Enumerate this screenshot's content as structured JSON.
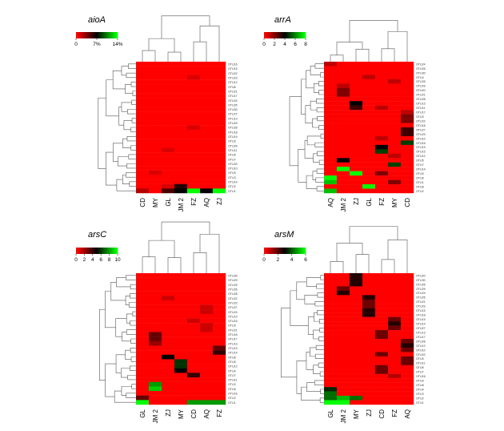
{
  "chart_data": [
    {
      "type": "heatmap",
      "title": "aioA",
      "legend_ticks": [
        "0",
        "7%",
        "14%"
      ],
      "legend_max": 14,
      "columns": [
        "CD",
        "MY",
        "GL",
        "JM 2",
        "FZ",
        "AQ",
        "ZJ"
      ],
      "rows": [
        "OTU16",
        "OTU15",
        "OTU22",
        "OTU23",
        "OTU12",
        "OTU8",
        "OTU21",
        "OTU17",
        "OTU24",
        "OTU25",
        "OTU30",
        "OTU27",
        "OTU13",
        "OTU29",
        "OTU28",
        "OTU18",
        "OTU19",
        "OTU9",
        "OTU26",
        "OTU11",
        "OTU6",
        "OTU7",
        "OTU20",
        "OTU10",
        "OTU5",
        "OTU3",
        "OTU14",
        "OTU2",
        "OTU1"
      ],
      "highlights": [
        {
          "row": "OTU23",
          "col": "FZ",
          "value": 1
        },
        {
          "row": "OTU28",
          "col": "FZ",
          "value": 1
        },
        {
          "row": "OTU11",
          "col": "GL",
          "value": 1
        },
        {
          "row": "OTU5",
          "col": "MY",
          "value": 1
        },
        {
          "row": "OTU2",
          "col": "GL",
          "value": 1
        },
        {
          "row": "OTU1",
          "col": "CD",
          "value": 2
        },
        {
          "row": "OTU2",
          "col": "JM 2",
          "value": 6
        },
        {
          "row": "OTU1",
          "col": "JM 2",
          "value": 7
        },
        {
          "row": "OTU1",
          "col": "GL",
          "value": 5
        },
        {
          "row": "OTU1",
          "col": "FZ",
          "value": 14
        },
        {
          "row": "OTU1",
          "col": "AQ",
          "value": 7
        },
        {
          "row": "OTU1",
          "col": "ZJ",
          "value": 14
        }
      ]
    },
    {
      "type": "heatmap",
      "title": "arrA",
      "legend_ticks": [
        "0",
        "2",
        "4",
        "6",
        "8"
      ],
      "legend_max": 8,
      "columns": [
        "AQ",
        "JM 2",
        "ZJ",
        "GL",
        "FZ",
        "MY",
        "CD"
      ],
      "rows": [
        "OTU24",
        "OTU26",
        "OTU30",
        "OTU4",
        "OTU25",
        "OTU29",
        "OTU20",
        "OTU21",
        "OTU28",
        "OTU13",
        "OTU11",
        "OTU17",
        "OTU3",
        "OTU22",
        "OTU18",
        "OTU27",
        "OTU23",
        "OTU10",
        "OTU16",
        "OTU19",
        "OTU15",
        "OTU12",
        "OTU5",
        "OTU7",
        "OTU14",
        "OTU9",
        "OTU6",
        "OTU1",
        "OTU8",
        "OTU2"
      ],
      "highlights": [
        {
          "row": "OTU24",
          "col": "AQ",
          "value": 1
        },
        {
          "row": "OTU4",
          "col": "GL",
          "value": 1
        },
        {
          "row": "OTU25",
          "col": "MY",
          "value": 1
        },
        {
          "row": "OTU29",
          "col": "JM 2",
          "value": 1
        },
        {
          "row": "OTU20",
          "col": "JM 2",
          "value": 2
        },
        {
          "row": "OTU21",
          "col": "JM 2",
          "value": 2
        },
        {
          "row": "OTU13",
          "col": "ZJ",
          "value": 4
        },
        {
          "row": "OTU11",
          "col": "ZJ",
          "value": 3
        },
        {
          "row": "OTU11",
          "col": "FZ",
          "value": 1
        },
        {
          "row": "OTU17",
          "col": "CD",
          "value": 1
        },
        {
          "row": "OTU3",
          "col": "CD",
          "value": 2
        },
        {
          "row": "OTU22",
          "col": "CD",
          "value": 2
        },
        {
          "row": "OTU27",
          "col": "CD",
          "value": 3
        },
        {
          "row": "OTU23",
          "col": "CD",
          "value": 3
        },
        {
          "row": "OTU10",
          "col": "FZ",
          "value": 1
        },
        {
          "row": "OTU16",
          "col": "CD",
          "value": 5
        },
        {
          "row": "OTU19",
          "col": "FZ",
          "value": 4
        },
        {
          "row": "OTU15",
          "col": "FZ",
          "value": 5
        },
        {
          "row": "OTU12",
          "col": "MY",
          "value": 1
        },
        {
          "row": "OTU5",
          "col": "JM 2",
          "value": 4
        },
        {
          "row": "OTU7",
          "col": "MY",
          "value": 5
        },
        {
          "row": "OTU14",
          "col": "JM 2",
          "value": 8
        },
        {
          "row": "OTU9",
          "col": "ZJ",
          "value": 8
        },
        {
          "row": "OTU9",
          "col": "FZ",
          "value": 2
        },
        {
          "row": "OTU6",
          "col": "AQ",
          "value": 8
        },
        {
          "row": "OTU1",
          "col": "AQ",
          "value": 7
        },
        {
          "row": "OTU1",
          "col": "MY",
          "value": 2
        },
        {
          "row": "OTU8",
          "col": "GL",
          "value": 8
        },
        {
          "row": "OTU2",
          "col": "AQ",
          "value": 7
        }
      ]
    },
    {
      "type": "heatmap",
      "title": "arsC",
      "legend_ticks": [
        "0",
        "2",
        "4",
        "6",
        "8",
        "10"
      ],
      "legend_max": 10,
      "columns": [
        "GL",
        "JM 2",
        "ZJ",
        "MY",
        "CD",
        "AQ",
        "FZ"
      ],
      "rows": [
        "OTU30",
        "OTU29",
        "OTU25",
        "OTU26",
        "OTU28",
        "OTU22",
        "OTU23",
        "OTU27",
        "OTU24",
        "OTU10",
        "OTU15",
        "OTU9",
        "OTU21",
        "OTU18",
        "OTU17",
        "OTU13",
        "OTU19",
        "OTU14",
        "OTU8",
        "OTU5",
        "OTU12",
        "OTU4",
        "OTU7",
        "OTU11",
        "OTU3",
        "OTU6",
        "OTU16",
        "OTU2",
        "OTU1"
      ],
      "highlights": [
        {
          "row": "OTU22",
          "col": "ZJ",
          "value": 1
        },
        {
          "row": "OTU27",
          "col": "AQ",
          "value": 1
        },
        {
          "row": "OTU24",
          "col": "AQ",
          "value": 1
        },
        {
          "row": "OTU15",
          "col": "CD",
          "value": 1
        },
        {
          "row": "OTU9",
          "col": "AQ",
          "value": 1
        },
        {
          "row": "OTU21",
          "col": "AQ",
          "value": 1
        },
        {
          "row": "OTU18",
          "col": "JM 2",
          "value": 3
        },
        {
          "row": "OTU17",
          "col": "JM 2",
          "value": 3
        },
        {
          "row": "OTU13",
          "col": "JM 2",
          "value": 2
        },
        {
          "row": "OTU19",
          "col": "FZ",
          "value": 3
        },
        {
          "row": "OTU14",
          "col": "FZ",
          "value": 4
        },
        {
          "row": "OTU8",
          "col": "ZJ",
          "value": 5
        },
        {
          "row": "OTU5",
          "col": "MY",
          "value": 6
        },
        {
          "row": "OTU12",
          "col": "MY",
          "value": 6
        },
        {
          "row": "OTU4",
          "col": "MY",
          "value": 5
        },
        {
          "row": "OTU7",
          "col": "CD",
          "value": 4
        },
        {
          "row": "OTU3",
          "col": "JM 2",
          "value": 8
        },
        {
          "row": "OTU6",
          "col": "JM 2",
          "value": 9
        },
        {
          "row": "OTU2",
          "col": "GL",
          "value": 3
        },
        {
          "row": "OTU1",
          "col": "GL",
          "value": 10
        },
        {
          "row": "OTU1",
          "col": "CD",
          "value": 8
        },
        {
          "row": "OTU1",
          "col": "AQ",
          "value": 8
        },
        {
          "row": "OTU1",
          "col": "FZ",
          "value": 8
        }
      ]
    },
    {
      "type": "heatmap",
      "title": "arsM",
      "legend_ticks": [
        "0",
        "2",
        "4",
        "6"
      ],
      "legend_max": 7,
      "columns": [
        "GL",
        "JM 2",
        "MY",
        "ZJ",
        "CD",
        "FZ",
        "AQ"
      ],
      "rows": [
        "OTU20",
        "OTU30",
        "OTU26",
        "OTU29",
        "OTU24",
        "OTU25",
        "OTU21",
        "OTU23",
        "OTU15",
        "OTU18",
        "OTU19",
        "OTU14",
        "OTU27",
        "OTU13",
        "OTU17",
        "OTU28",
        "OTU12",
        "OTU10",
        "OTU22",
        "OTU5",
        "OTU11",
        "OTU6",
        "OTU7",
        "OTU16",
        "OTU9",
        "OTU8",
        "OTU4",
        "OTU3",
        "OTU2",
        "OTU1"
      ],
      "highlights": [
        {
          "row": "OTU20",
          "col": "MY",
          "value": 3
        },
        {
          "row": "OTU30",
          "col": "MY",
          "value": 3
        },
        {
          "row": "OTU26",
          "col": "MY",
          "value": 3
        },
        {
          "row": "OTU29",
          "col": "JM 2",
          "value": 2
        },
        {
          "row": "OTU24",
          "col": "JM 2",
          "value": 3
        },
        {
          "row": "OTU25",
          "col": "ZJ",
          "value": 3
        },
        {
          "row": "OTU21",
          "col": "ZJ",
          "value": 2
        },
        {
          "row": "OTU23",
          "col": "ZJ",
          "value": 2
        },
        {
          "row": "OTU15",
          "col": "ZJ",
          "value": 3
        },
        {
          "row": "OTU18",
          "col": "ZJ",
          "value": 3
        },
        {
          "row": "OTU19",
          "col": "FZ",
          "value": 2
        },
        {
          "row": "OTU14",
          "col": "FZ",
          "value": 3
        },
        {
          "row": "OTU27",
          "col": "FZ",
          "value": 2
        },
        {
          "row": "OTU13",
          "col": "CD",
          "value": 2
        },
        {
          "row": "OTU17",
          "col": "CD",
          "value": 2
        },
        {
          "row": "OTU28",
          "col": "AQ",
          "value": 2
        },
        {
          "row": "OTU12",
          "col": "AQ",
          "value": 3
        },
        {
          "row": "OTU10",
          "col": "AQ",
          "value": 2
        },
        {
          "row": "OTU22",
          "col": "CD",
          "value": 2
        },
        {
          "row": "OTU5",
          "col": "AQ",
          "value": 2
        },
        {
          "row": "OTU11",
          "col": "AQ",
          "value": 2
        },
        {
          "row": "OTU6",
          "col": "CD",
          "value": 2
        },
        {
          "row": "OTU7",
          "col": "CD",
          "value": 2
        },
        {
          "row": "OTU16",
          "col": "FZ",
          "value": 1
        },
        {
          "row": "OTU4",
          "col": "GL",
          "value": 4
        },
        {
          "row": "OTU3",
          "col": "GL",
          "value": 5
        },
        {
          "row": "OTU2",
          "col": "GL",
          "value": 5
        },
        {
          "row": "OTU2",
          "col": "JM 2",
          "value": 6
        },
        {
          "row": "OTU2",
          "col": "MY",
          "value": 5
        },
        {
          "row": "OTU1",
          "col": "GL",
          "value": 7
        },
        {
          "row": "OTU1",
          "col": "JM 2",
          "value": 7
        }
      ]
    }
  ]
}
